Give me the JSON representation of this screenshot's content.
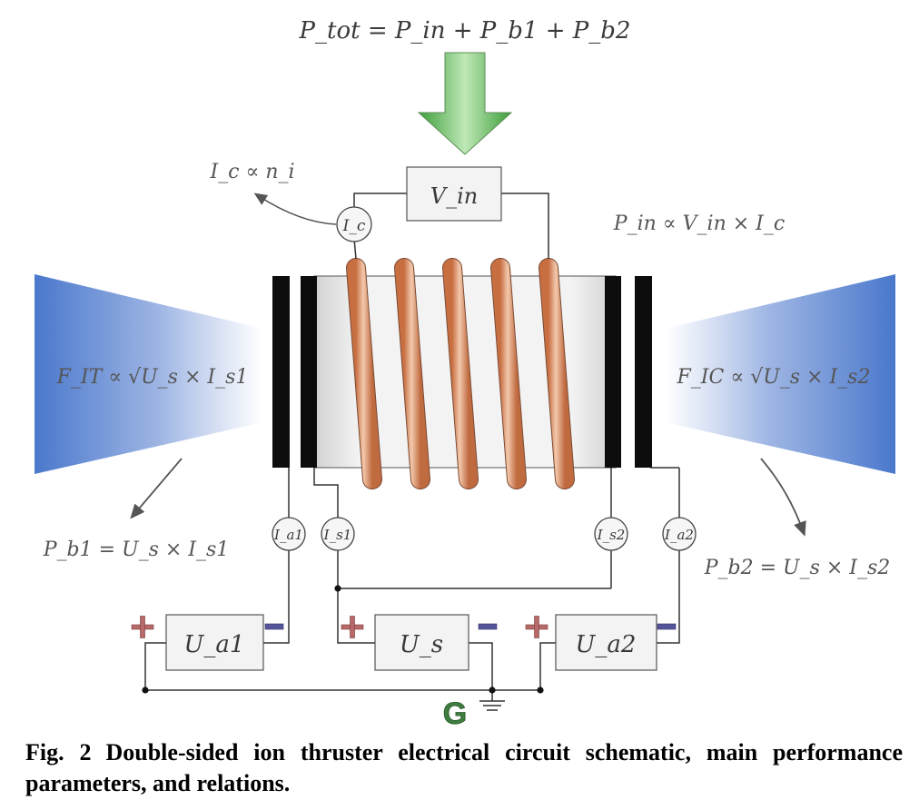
{
  "equations": {
    "p_tot": "P_tot = P_in + P_b1 + P_b2",
    "i_c": "I_c ∝ n_i",
    "p_in": "P_in ∝ V_in × I_c",
    "f_it": "F_IT ∝ √U_s × I_s1",
    "f_ic": "F_IC ∝ √U_s × I_s2",
    "p_b1": "P_b1 = U_s × I_s1",
    "p_b2": "P_b2 = U_s × I_s2"
  },
  "components": {
    "v_in": "V_in",
    "meter_ic": "I_c",
    "meter_ia1": "I_a1",
    "meter_is1": "I_s1",
    "meter_is2": "I_s2",
    "meter_ia2": "I_a2",
    "supply_ua1": "U_a1",
    "supply_us": "U_s",
    "supply_ua2": "U_a2",
    "ground": "G"
  },
  "colors": {
    "arrow_green": "#5cbf5a",
    "plume_blue": "#4a78cc",
    "coil_copper": "#d98a5f",
    "plus_red": "#b86a6a",
    "minus_blue": "#55559a",
    "ground_green": "#3e7d40"
  },
  "caption": {
    "label": "Fig. 2",
    "text": "Double-sided ion thruster electrical circuit schematic, main performance parameters, and relations."
  }
}
